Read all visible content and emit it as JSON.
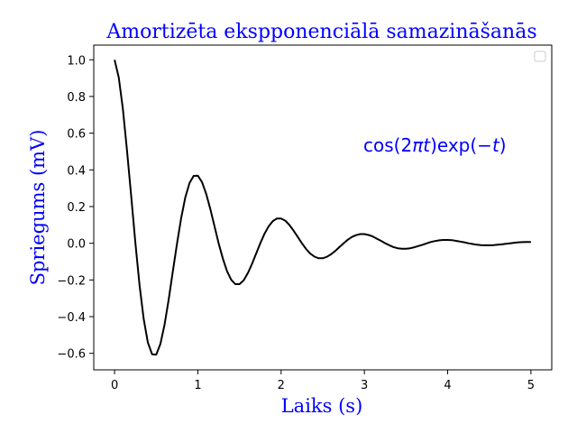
{
  "chart_data": {
    "type": "line",
    "title": "Amortizēta ekspponenciālā samazināšanās",
    "xlabel": "Laiks (s)",
    "ylabel": "Spriegums (mV)",
    "xlim": [
      -0.25,
      5.25
    ],
    "ylim": [
      -0.69,
      1.08
    ],
    "x_ticks": [
      "0",
      "1",
      "2",
      "3",
      "4",
      "5"
    ],
    "y_ticks": [
      "1.0",
      "0.8",
      "0.6",
      "0.4",
      "0.2",
      "0.0",
      "−0.2",
      "−0.4",
      "−0.6"
    ],
    "x_tick_values": [
      0,
      1,
      2,
      3,
      4,
      5
    ],
    "y_tick_values": [
      1.0,
      0.8,
      0.6,
      0.4,
      0.2,
      0.0,
      -0.2,
      -0.4,
      -0.6
    ],
    "annotation": {
      "parts": [
        "cos(2",
        "πt",
        ")exp(−",
        "t",
        ")"
      ],
      "x": 3.0,
      "y": 0.5
    },
    "legend": {
      "entries": [],
      "placement": "top-right"
    },
    "grid": false,
    "line_color": "#000000",
    "text_color": "#0000ff",
    "series": [
      {
        "x": [
          0.0,
          0.05,
          0.1,
          0.15,
          0.2,
          0.25,
          0.3,
          0.35,
          0.4,
          0.45,
          0.5,
          0.55,
          0.6,
          0.65,
          0.7,
          0.75,
          0.8,
          0.85,
          0.9,
          0.95,
          1.0,
          1.05,
          1.1,
          1.15,
          1.2,
          1.25,
          1.3,
          1.35,
          1.4,
          1.45,
          1.5,
          1.55,
          1.6,
          1.65,
          1.7,
          1.75,
          1.8,
          1.85,
          1.9,
          1.95,
          2.0,
          2.05,
          2.1,
          2.15,
          2.2,
          2.25,
          2.3,
          2.35,
          2.4,
          2.45,
          2.5,
          2.55,
          2.6,
          2.65,
          2.7,
          2.75,
          2.8,
          2.85,
          2.9,
          2.95,
          3.0,
          3.05,
          3.1,
          3.15,
          3.2,
          3.25,
          3.3,
          3.35,
          3.4,
          3.45,
          3.5,
          3.55,
          3.6,
          3.65,
          3.7,
          3.75,
          3.8,
          3.85,
          3.9,
          3.95,
          4.0,
          4.05,
          4.1,
          4.15,
          4.2,
          4.25,
          4.3,
          4.35,
          4.4,
          4.45,
          4.5,
          4.55,
          4.6,
          4.65,
          4.7,
          4.75,
          4.8,
          4.85,
          4.9,
          4.95,
          5.0
        ],
        "y": [
          1.0,
          0.904,
          0.732,
          0.504,
          0.253,
          0.0,
          -0.229,
          -0.413,
          -0.541,
          -0.605,
          -0.607,
          -0.549,
          -0.444,
          -0.307,
          -0.153,
          0.0,
          0.139,
          0.251,
          0.328,
          0.367,
          0.368,
          0.333,
          0.269,
          0.186,
          0.093,
          0.0,
          -0.084,
          -0.152,
          -0.199,
          -0.223,
          -0.223,
          -0.202,
          -0.163,
          -0.113,
          -0.056,
          0.0,
          0.051,
          0.092,
          0.121,
          0.135,
          0.135,
          0.123,
          0.099,
          0.068,
          0.034,
          0.0,
          -0.031,
          -0.056,
          -0.073,
          -0.082,
          -0.082,
          -0.074,
          -0.06,
          -0.042,
          -0.021,
          0.0,
          0.019,
          0.034,
          0.044,
          0.05,
          0.05,
          0.045,
          0.037,
          0.025,
          0.013,
          0.0,
          -0.011,
          -0.021,
          -0.027,
          -0.03,
          -0.03,
          -0.027,
          -0.022,
          -0.015,
          -0.008,
          0.0,
          0.007,
          0.012,
          0.016,
          0.018,
          0.018,
          0.017,
          0.013,
          0.009,
          0.005,
          0.0,
          -0.004,
          -0.008,
          -0.01,
          -0.011,
          -0.011,
          -0.01,
          -0.008,
          -0.006,
          -0.003,
          0.0,
          0.003,
          0.005,
          0.006,
          0.007,
          0.007
        ]
      }
    ]
  }
}
